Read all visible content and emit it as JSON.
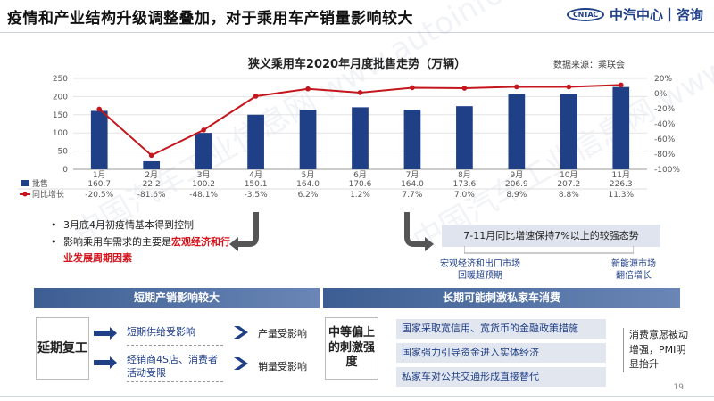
{
  "header": {
    "title": "疫情和产业结构升级调整叠加，对于乘用车产销量影响较大",
    "logo_mark": "CNTAC",
    "logo_text": "中汽中心｜咨询"
  },
  "watermark": "中国汽车工业信息网 www.autoinfo.org.cn",
  "chart_data": {
    "type": "bar",
    "title": "狭义乘用车2020年月度批售走势（万辆）",
    "source": "数据来源：乘联会",
    "categories": [
      "1月",
      "2月",
      "3月",
      "4月",
      "5月",
      "6月",
      "7月",
      "8月",
      "9月",
      "10月",
      "11月"
    ],
    "series": [
      {
        "name": "批售",
        "values": [
          160.7,
          22.2,
          100.2,
          150.1,
          164.0,
          170.6,
          164.0,
          173.6,
          206.9,
          207.2,
          226.3
        ],
        "labels": [
          "160.7",
          "22.2",
          "100.2",
          "150.1",
          "164.0",
          "170.6",
          "164.0",
          "173.6",
          "206.9",
          "207.2",
          "226.3"
        ]
      },
      {
        "name": "同比增长",
        "values": [
          -20.5,
          -81.6,
          -48.1,
          -3.5,
          6.2,
          1.2,
          7.7,
          7.0,
          8.9,
          8.8,
          11.3
        ],
        "labels": [
          "-20.5%",
          "-81.6%",
          "-48.1%",
          "-3.5%",
          "6.2%",
          "1.2%",
          "7.7%",
          "7.0%",
          "8.9%",
          "8.8%",
          "11.3%"
        ]
      }
    ],
    "ylim": [
      0,
      250
    ],
    "y_ticks": [
      "0",
      "50",
      "100",
      "150",
      "200",
      "250"
    ],
    "y2lim": [
      -100,
      20
    ],
    "y2_ticks": [
      "20%",
      "0%",
      "-20%",
      "-40%",
      "-60%",
      "-80%",
      "-100%"
    ],
    "colors": {
      "bar": "#1f3f86",
      "line": "#c4161c"
    },
    "grid": true
  },
  "left_bullets": [
    "3月底4月初疫情基本得到控制",
    "影响乘用车需求的主要是",
    "宏观经济和行业发展周期因素"
  ],
  "right_box": "7-11月同比增速保持7%以上的较强态势",
  "right_notes": {
    "left": "宏观经济和出口市场\n回暖超预期",
    "right": "新能源市场\n翻倍增长"
  },
  "bands": {
    "left": "短期产销影响较大",
    "right": "长期可能刺激私家车消费"
  },
  "short_term": {
    "cause": "延期复工",
    "effects": [
      {
        "reason": "短期供给受影响",
        "result": "产量受影响"
      },
      {
        "reason": "经销商4S店、消费者活动受限",
        "result": "销量受影响"
      }
    ]
  },
  "long_term": {
    "stimulus": "中等偏上的刺激强度",
    "policies": [
      "国家采取宽信用、宽货币的金融政策措施",
      "国家强力引导资金进入实体经济",
      "私家车对公共交通形成直接替代"
    ],
    "outcome": "消费意愿被动增强，PMI明显抬升"
  },
  "page_number": "19"
}
